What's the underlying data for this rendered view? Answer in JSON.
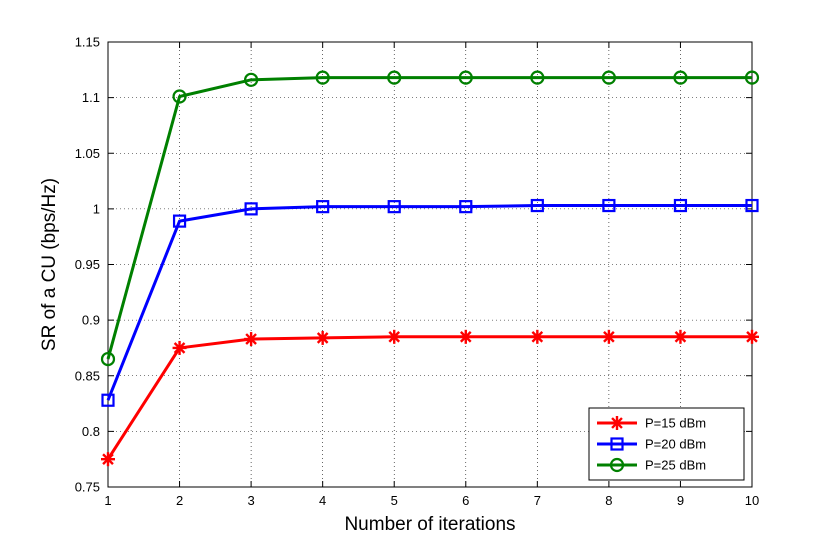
{
  "chart_data": {
    "type": "line",
    "title": "",
    "xlabel": "Number of iterations",
    "ylabel": "SR of a CU (bps/Hz)",
    "xlim": [
      1,
      10
    ],
    "ylim": [
      0.75,
      1.15
    ],
    "x_ticks": [
      1,
      2,
      3,
      4,
      5,
      6,
      7,
      8,
      9,
      10
    ],
    "y_ticks": [
      "0.75",
      "0.8",
      "0.85",
      "0.9",
      "0.95",
      "1",
      "1.05",
      "1.1",
      "1.15"
    ],
    "grid": "on (dotted)",
    "legend_position": "bottom-right",
    "x": [
      1,
      2,
      3,
      4,
      5,
      6,
      7,
      8,
      9,
      10
    ],
    "series": [
      {
        "name": "P=15 dBm",
        "color": "#ff0000",
        "marker": "asterisk",
        "values": [
          0.775,
          0.875,
          0.883,
          0.884,
          0.885,
          0.885,
          0.885,
          0.885,
          0.885,
          0.885
        ]
      },
      {
        "name": "P=20 dBm",
        "color": "#0000ff",
        "marker": "square",
        "values": [
          0.828,
          0.989,
          1.0,
          1.002,
          1.002,
          1.002,
          1.003,
          1.003,
          1.003,
          1.003
        ]
      },
      {
        "name": "P=25 dBm",
        "color": "#008000",
        "marker": "circle",
        "values": [
          0.865,
          1.101,
          1.116,
          1.118,
          1.118,
          1.118,
          1.118,
          1.118,
          1.118,
          1.118
        ]
      }
    ]
  }
}
